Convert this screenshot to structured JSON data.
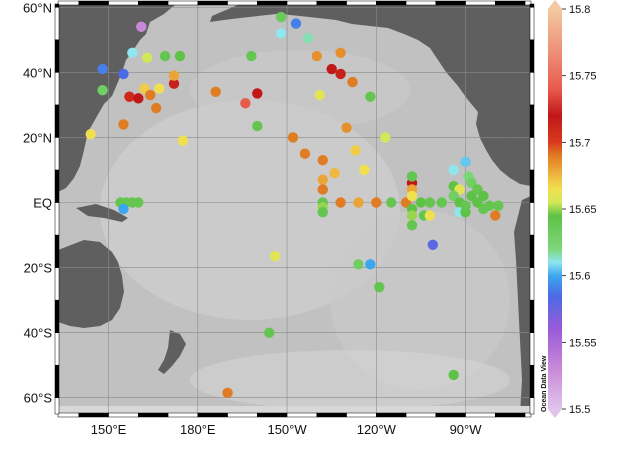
{
  "latitude_labels": [
    "60°N",
    "40°N",
    "20°N",
    "EQ",
    "20°S",
    "40°S",
    "60°S"
  ],
  "longitude_labels": [
    "150°E",
    "180°E",
    "150°W",
    "120°W",
    "90°W"
  ],
  "lat_ticks": [
    60,
    40,
    20,
    0,
    -20,
    -40,
    -60
  ],
  "lon_ticks": [
    150,
    180,
    210,
    240,
    270
  ],
  "map_extent": {
    "lon": [
      133,
      292
    ],
    "lat": [
      -65,
      61
    ]
  },
  "colorbar": {
    "min": 15.5,
    "max": 15.8,
    "tick_values": [
      15.8,
      15.75,
      15.7,
      15.65,
      15.6,
      15.55,
      15.5
    ],
    "tick_labels": [
      "15.8",
      "15.75",
      "15.7",
      "15.65",
      "15.6",
      "15.55",
      "15.5"
    ],
    "stops": [
      {
        "v": 15.5,
        "c": "#e0c4ec"
      },
      {
        "v": 15.53,
        "c": "#c88ad8"
      },
      {
        "v": 15.56,
        "c": "#9a5ad8"
      },
      {
        "v": 15.585,
        "c": "#4a6be4"
      },
      {
        "v": 15.6,
        "c": "#3ea6f0"
      },
      {
        "v": 15.61,
        "c": "#8ee6ee"
      },
      {
        "v": 15.62,
        "c": "#7ed67a"
      },
      {
        "v": 15.645,
        "c": "#5ec246"
      },
      {
        "v": 15.655,
        "c": "#d2e85a"
      },
      {
        "v": 15.665,
        "c": "#f0e050"
      },
      {
        "v": 15.675,
        "c": "#f0b840"
      },
      {
        "v": 15.69,
        "c": "#e07c24"
      },
      {
        "v": 15.7,
        "c": "#d83a1e"
      },
      {
        "v": 15.72,
        "c": "#c01818"
      },
      {
        "v": 15.74,
        "c": "#e85a4c"
      },
      {
        "v": 15.765,
        "c": "#ec8a74"
      },
      {
        "v": 15.8,
        "c": "#f4c8a0"
      }
    ]
  },
  "credit_text": "Ocean Data View",
  "stations": [
    {
      "lon": 148,
      "lat": 41,
      "v": 15.59
    },
    {
      "lon": 148,
      "lat": 34.5,
      "v": 15.63
    },
    {
      "lon": 144,
      "lat": 21,
      "v": 15.665
    },
    {
      "lon": 155,
      "lat": 39.5,
      "v": 15.585
    },
    {
      "lon": 157,
      "lat": 32.5,
      "v": 15.71
    },
    {
      "lon": 155,
      "lat": 24,
      "v": 15.69
    },
    {
      "lon": 158,
      "lat": 46,
      "v": 15.61
    },
    {
      "lon": 160,
      "lat": 32,
      "v": 15.72
    },
    {
      "lon": 162,
      "lat": 35,
      "v": 15.67
    },
    {
      "lon": 163,
      "lat": 44.5,
      "v": 15.655
    },
    {
      "lon": 164,
      "lat": 33,
      "v": 15.69
    },
    {
      "lon": 166,
      "lat": 29,
      "v": 15.69
    },
    {
      "lon": 167,
      "lat": 35,
      "v": 15.665
    },
    {
      "lon": 169,
      "lat": 45,
      "v": 15.64
    },
    {
      "lon": 161,
      "lat": 54,
      "v": 15.53
    },
    {
      "lon": 172,
      "lat": 36.5,
      "v": 15.715
    },
    {
      "lon": 172,
      "lat": 39,
      "v": 15.68
    },
    {
      "lon": 174,
      "lat": 45,
      "v": 15.645
    },
    {
      "lon": 175,
      "lat": 19,
      "v": 15.665
    },
    {
      "lon": 186,
      "lat": 34,
      "v": 15.69
    },
    {
      "lon": 196,
      "lat": 30.5,
      "v": 15.74
    },
    {
      "lon": 200,
      "lat": 33.5,
      "v": 15.72
    },
    {
      "lon": 198,
      "lat": 45,
      "v": 15.64
    },
    {
      "lon": 200,
      "lat": 23.5,
      "v": 15.64
    },
    {
      "lon": 208,
      "lat": 57,
      "v": 15.635
    },
    {
      "lon": 208,
      "lat": 52,
      "v": 15.61
    },
    {
      "lon": 213,
      "lat": 55,
      "v": 15.59
    },
    {
      "lon": 217,
      "lat": 50.5,
      "v": 15.615
    },
    {
      "lon": 220,
      "lat": 45,
      "v": 15.685
    },
    {
      "lon": 221,
      "lat": 33,
      "v": 15.66
    },
    {
      "lon": 212,
      "lat": 20,
      "v": 15.69
    },
    {
      "lon": 216,
      "lat": 15,
      "v": 15.69
    },
    {
      "lon": 222,
      "lat": 13,
      "v": 15.69
    },
    {
      "lon": 226,
      "lat": 9,
      "v": 15.675
    },
    {
      "lon": 222,
      "lat": 7,
      "v": 15.68
    },
    {
      "lon": 225,
      "lat": 41,
      "v": 15.72
    },
    {
      "lon": 228,
      "lat": 46,
      "v": 15.685
    },
    {
      "lon": 228,
      "lat": 39.5,
      "v": 15.715
    },
    {
      "lon": 230,
      "lat": 23,
      "v": 15.685
    },
    {
      "lon": 232,
      "lat": 37,
      "v": 15.69
    },
    {
      "lon": 233,
      "lat": 16,
      "v": 15.67
    },
    {
      "lon": 236,
      "lat": 10,
      "v": 15.665
    },
    {
      "lon": 238,
      "lat": 32.5,
      "v": 15.64
    },
    {
      "lon": 243,
      "lat": 20,
      "v": 15.655
    },
    {
      "lon": 222,
      "lat": 4,
      "v": 15.69
    },
    {
      "lon": 222,
      "lat": 0,
      "v": 15.64
    },
    {
      "lon": 222,
      "lat": -1.5,
      "v": 15.65
    },
    {
      "lon": 222,
      "lat": -3,
      "v": 15.64
    },
    {
      "lon": 228,
      "lat": 0,
      "v": 15.69
    },
    {
      "lon": 234,
      "lat": 0,
      "v": 15.68
    },
    {
      "lon": 240,
      "lat": 0,
      "v": 15.69
    },
    {
      "lon": 245,
      "lat": 0,
      "v": 15.64
    },
    {
      "lon": 250,
      "lat": 0,
      "v": 15.69
    },
    {
      "lon": 255,
      "lat": 0,
      "v": 15.645
    },
    {
      "lon": 258,
      "lat": 0,
      "v": 15.64
    },
    {
      "lon": 262,
      "lat": 0,
      "v": 15.64
    },
    {
      "lon": 252,
      "lat": 6,
      "v": 15.72
    },
    {
      "lon": 252,
      "lat": 8,
      "v": 15.64
    },
    {
      "lon": 252,
      "lat": 4,
      "v": 15.68
    },
    {
      "lon": 252,
      "lat": 2,
      "v": 15.665
    },
    {
      "lon": 252,
      "lat": -2,
      "v": 15.645
    },
    {
      "lon": 252,
      "lat": -4,
      "v": 15.65
    },
    {
      "lon": 252,
      "lat": -7,
      "v": 15.64
    },
    {
      "lon": 256,
      "lat": -4,
      "v": 15.64
    },
    {
      "lon": 258,
      "lat": -4,
      "v": 15.665
    },
    {
      "lon": 259,
      "lat": -13,
      "v": 15.58
    },
    {
      "lon": 266,
      "lat": 10,
      "v": 15.61
    },
    {
      "lon": 266,
      "lat": 5,
      "v": 15.645
    },
    {
      "lon": 268,
      "lat": 4,
      "v": 15.66
    },
    {
      "lon": 266,
      "lat": 2,
      "v": 15.63
    },
    {
      "lon": 268,
      "lat": 0,
      "v": 15.645
    },
    {
      "lon": 268,
      "lat": -3,
      "v": 15.61
    },
    {
      "lon": 270,
      "lat": 12.5,
      "v": 15.605
    },
    {
      "lon": 271,
      "lat": 8,
      "v": 15.62
    },
    {
      "lon": 272,
      "lat": 6,
      "v": 15.63
    },
    {
      "lon": 272,
      "lat": 2,
      "v": 15.645
    },
    {
      "lon": 274,
      "lat": 4,
      "v": 15.64
    },
    {
      "lon": 274,
      "lat": 0,
      "v": 15.645
    },
    {
      "lon": 276,
      "lat": 2,
      "v": 15.645
    },
    {
      "lon": 276,
      "lat": -2,
      "v": 15.64
    },
    {
      "lon": 278,
      "lat": -1,
      "v": 15.64
    },
    {
      "lon": 280,
      "lat": -4,
      "v": 15.69
    },
    {
      "lon": 281,
      "lat": -1,
      "v": 15.64
    },
    {
      "lon": 270,
      "lat": -3,
      "v": 15.645
    },
    {
      "lon": 270,
      "lat": -1,
      "v": 15.64
    },
    {
      "lon": 154,
      "lat": 0,
      "v": 15.64
    },
    {
      "lon": 156,
      "lat": 0,
      "v": 15.64
    },
    {
      "lon": 158,
      "lat": 0,
      "v": 15.64
    },
    {
      "lon": 160,
      "lat": 0,
      "v": 15.64
    },
    {
      "lon": 155,
      "lat": -2,
      "v": 15.6
    },
    {
      "lon": 206,
      "lat": -16.5,
      "v": 15.66
    },
    {
      "lon": 234,
      "lat": -19,
      "v": 15.63
    },
    {
      "lon": 238,
      "lat": -19,
      "v": 15.6
    },
    {
      "lon": 241,
      "lat": -26,
      "v": 15.64
    },
    {
      "lon": 204,
      "lat": -40,
      "v": 15.64
    },
    {
      "lon": 266,
      "lat": -53,
      "v": 15.645
    },
    {
      "lon": 190,
      "lat": -58.5,
      "v": 15.69
    }
  ]
}
